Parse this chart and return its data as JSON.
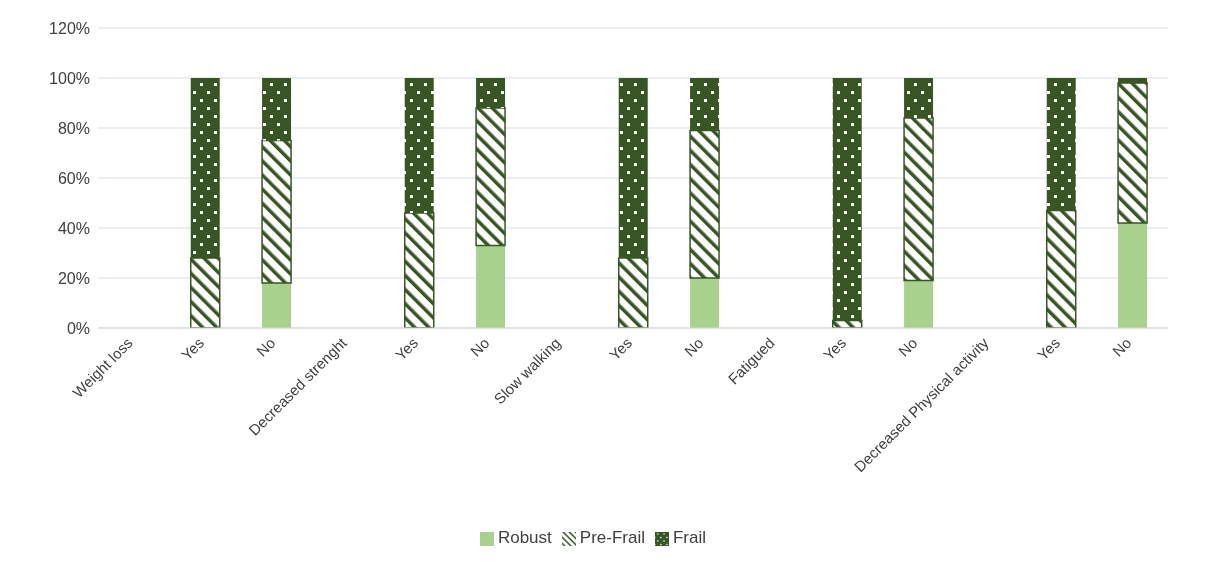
{
  "chart_data": {
    "type": "bar",
    "stacked": true,
    "categories": [
      "Weight loss",
      "Yes",
      "No",
      "Decreased strenght",
      "Yes",
      "No",
      "Slow walking",
      "Yes",
      "No",
      "Fatigued",
      "Yes",
      "No",
      "Decreased Physical activity",
      "Yes",
      "No"
    ],
    "series": [
      {
        "name": "Robust",
        "color": "#a9d18e",
        "values": [
          null,
          0,
          18,
          null,
          0,
          33,
          null,
          0,
          20,
          null,
          0,
          19,
          null,
          0,
          42
        ]
      },
      {
        "name": "Pre-Frail",
        "color": "#375623",
        "values": [
          null,
          28,
          57,
          null,
          46,
          55,
          null,
          28,
          59,
          null,
          3,
          65,
          null,
          47,
          56
        ]
      },
      {
        "name": "Frail",
        "color": "#375623",
        "values": [
          null,
          72,
          25,
          null,
          54,
          12,
          null,
          72,
          21,
          null,
          97,
          16,
          null,
          53,
          2
        ]
      }
    ],
    "ylim": [
      0,
      120
    ],
    "yticks": [
      {
        "value": 0,
        "label": "0%"
      },
      {
        "value": 20,
        "label": "20%"
      },
      {
        "value": 40,
        "label": "40%"
      },
      {
        "value": 60,
        "label": "60%"
      },
      {
        "value": 80,
        "label": "80%"
      },
      {
        "value": 100,
        "label": "100%"
      },
      {
        "value": 120,
        "label": "120%"
      }
    ],
    "grid": "y",
    "legend": "bottom"
  }
}
